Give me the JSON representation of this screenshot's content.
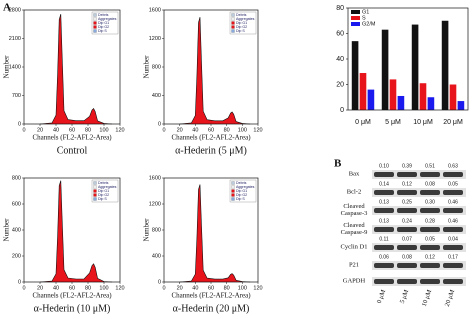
{
  "panel_labels": [
    "A",
    "B"
  ],
  "chart_data": [
    {
      "type": "area",
      "title": "Control",
      "xlabel": "Channels (FL2-AFL2-Area)",
      "ylabel": "Number",
      "color": "#e8141b",
      "x": [
        20,
        35,
        40,
        42,
        44,
        46,
        48,
        50,
        55,
        65,
        75,
        82,
        85,
        87,
        89,
        92,
        100,
        110
      ],
      "values": [
        0,
        27,
        216,
        1215,
        2565,
        2700,
        1485,
        324,
        108,
        81,
        81,
        190,
        342,
        380,
        304,
        76,
        14,
        0
      ],
      "xlim": [
        0,
        120
      ],
      "xticks": [
        0,
        20,
        40,
        60,
        80,
        100,
        120
      ],
      "ylim": [
        0,
        2800
      ],
      "yticks": [
        0,
        700,
        1400,
        2100,
        2800
      ],
      "legend": [
        "Debris",
        "Aggregates",
        "Dip G1",
        "Dip G2",
        "Dip S"
      ]
    },
    {
      "type": "area",
      "title": "α-Hederin (5 μM)",
      "xlabel": "Channels (FL2-AFL2-Area)",
      "ylabel": "Number",
      "color": "#e8141b",
      "x": [
        20,
        35,
        40,
        42,
        44,
        46,
        48,
        50,
        55,
        65,
        75,
        82,
        85,
        87,
        89,
        92,
        100,
        110
      ],
      "values": [
        0,
        15,
        120,
        675,
        1425,
        1500,
        825,
        180,
        60,
        45,
        45,
        85,
        153,
        170,
        136,
        34,
        8,
        0
      ],
      "xlim": [
        0,
        120
      ],
      "xticks": [
        0,
        20,
        40,
        60,
        80,
        100,
        120
      ],
      "ylim": [
        0,
        1600
      ],
      "yticks": [
        0,
        400,
        800,
        1200,
        1600
      ],
      "legend": [
        "Debris",
        "Aggregates",
        "Dip G1",
        "Dip G2",
        "Dip S"
      ]
    },
    {
      "type": "area",
      "title": "α-Hederin (10 μM)",
      "xlabel": "Channels (FL2-AFL2-Area)",
      "ylabel": "Number",
      "color": "#e8141b",
      "x": [
        20,
        35,
        40,
        42,
        44,
        46,
        48,
        50,
        55,
        65,
        75,
        82,
        85,
        87,
        89,
        92,
        100,
        110
      ],
      "values": [
        0,
        8,
        62,
        351,
        741,
        780,
        429,
        94,
        31,
        23,
        23,
        70,
        126,
        140,
        112,
        28,
        4,
        0
      ],
      "xlim": [
        0,
        120
      ],
      "xticks": [
        0,
        20,
        40,
        60,
        80,
        100,
        120
      ],
      "ylim": [
        0,
        800
      ],
      "yticks": [
        0,
        200,
        400,
        600,
        800
      ],
      "legend": [
        "Debris",
        "Aggregates",
        "Dip G1",
        "Dip G2",
        "Dip S"
      ]
    },
    {
      "type": "area",
      "title": "α-Hederin (20 μM)",
      "xlabel": "Channels (FL2-AFL2-Area)",
      "ylabel": "Number",
      "color": "#e8141b",
      "x": [
        20,
        35,
        40,
        42,
        44,
        46,
        48,
        50,
        55,
        65,
        75,
        82,
        85,
        87,
        89,
        92,
        100,
        110
      ],
      "values": [
        0,
        15,
        120,
        675,
        1425,
        1500,
        825,
        180,
        60,
        45,
        45,
        65,
        117,
        130,
        104,
        26,
        8,
        0
      ],
      "xlim": [
        0,
        120
      ],
      "xticks": [
        0,
        20,
        40,
        60,
        80,
        100,
        120
      ],
      "ylim": [
        0,
        1600
      ],
      "yticks": [
        0,
        400,
        800,
        1200,
        1600
      ],
      "legend": [
        "Debris",
        "Aggregates",
        "Dip G1",
        "Dip G2",
        "Dip S"
      ]
    },
    {
      "type": "bar",
      "categories": [
        "0 μM",
        "5 μM",
        "10 μM",
        "20 μM"
      ],
      "series": [
        {
          "name": "G1",
          "color": "#111111",
          "values": [
            54,
            63,
            67,
            70
          ]
        },
        {
          "name": "S",
          "color": "#e8141b",
          "values": [
            29,
            24,
            21,
            20
          ]
        },
        {
          "name": "G2/M",
          "color": "#1a1aee",
          "values": [
            16,
            11,
            10,
            7
          ]
        }
      ],
      "ylim": [
        0,
        80
      ],
      "yticks": [
        0,
        20,
        40,
        60,
        80
      ]
    }
  ],
  "blot": {
    "columns": [
      "0 μM",
      "5 μM",
      "10 μM",
      "20 μM"
    ],
    "rows": [
      {
        "label": [
          "Bax"
        ],
        "values": [
          "0.10",
          "0.39",
          "0.51",
          "0.63"
        ]
      },
      {
        "label": [
          "Bcl-2"
        ],
        "values": [
          "0.14",
          "0.12",
          "0.08",
          "0.05"
        ]
      },
      {
        "label": [
          "Cleaved",
          "Caspase-3"
        ],
        "values": [
          "0.13",
          "0.25",
          "0.30",
          "0.46"
        ]
      },
      {
        "label": [
          "Cleaved",
          "Caspase-9"
        ],
        "values": [
          "0.13",
          "0.24",
          "0.28",
          "0.46"
        ]
      },
      {
        "label": [
          "Cyclin D1"
        ],
        "values": [
          "0.11",
          "0.07",
          "0.05",
          "0.04"
        ]
      },
      {
        "label": [
          "P21"
        ],
        "values": [
          "0.06",
          "0.08",
          "0.12",
          "0.17"
        ]
      },
      {
        "label": [
          "GAPDH"
        ],
        "values": []
      }
    ]
  }
}
